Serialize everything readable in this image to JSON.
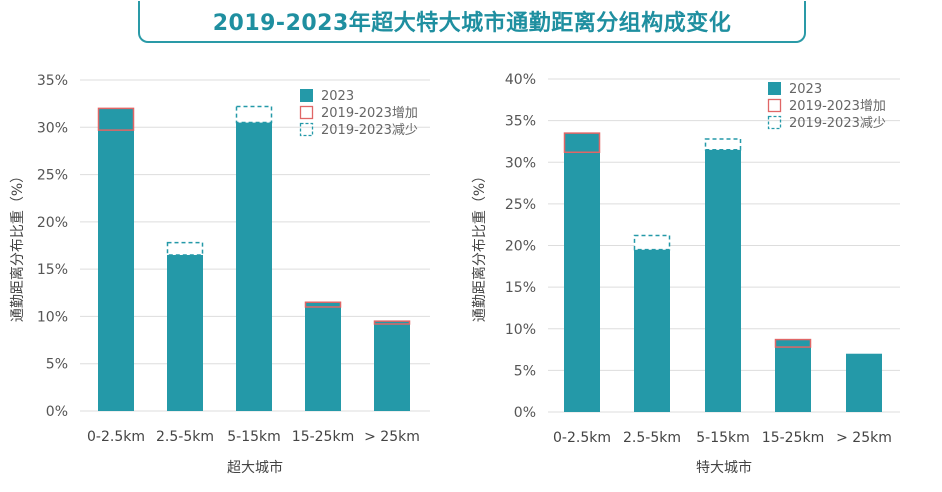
{
  "title": "2019-2023年超大特大城市通勤距离分组构成变化",
  "legend": {
    "base": "2023",
    "increase": "2019-2023增加",
    "decrease": "2019-2023减少"
  },
  "colors": {
    "bar": "#2499a8",
    "increase": "#e06666",
    "decrease": "#2499a8",
    "grid": "#dddddd"
  },
  "chart_data": [
    {
      "type": "bar",
      "id": "left",
      "xlabel": "超大城市",
      "ylabel": "通勤距离分布比重（%）",
      "ylim": [
        0,
        35
      ],
      "yticks": [
        0,
        5,
        10,
        15,
        20,
        25,
        30,
        35
      ],
      "ytick_labels": [
        "0%",
        "5%",
        "10%",
        "15%",
        "20%",
        "25%",
        "30%",
        "35%"
      ],
      "categories": [
        "0-2.5km",
        "2.5-5km",
        "5-15km",
        "15-25km",
        "> 25km"
      ],
      "series": [
        {
          "name": "2023",
          "values": [
            32.0,
            16.5,
            30.5,
            11.5,
            9.5
          ]
        },
        {
          "name": "2019-2023增加",
          "values": [
            2.3,
            0,
            0,
            0.5,
            0.3
          ]
        },
        {
          "name": "2019-2023减少",
          "values": [
            0,
            1.3,
            1.7,
            0,
            0
          ]
        }
      ],
      "grid": true,
      "legend_position": "top-right"
    },
    {
      "type": "bar",
      "id": "right",
      "xlabel": "特大城市",
      "ylabel": "通勤距离分布比重（%）",
      "ylim": [
        0,
        40
      ],
      "yticks": [
        0,
        5,
        10,
        15,
        20,
        25,
        30,
        35,
        40
      ],
      "ytick_labels": [
        "0%",
        "5%",
        "10%",
        "15%",
        "20%",
        "25%",
        "30%",
        "35%",
        "40%"
      ],
      "categories": [
        "0-2.5km",
        "2.5-5km",
        "5-15km",
        "15-25km",
        "> 25km"
      ],
      "series": [
        {
          "name": "2023",
          "values": [
            33.5,
            19.5,
            31.5,
            8.7,
            7.0
          ]
        },
        {
          "name": "2019-2023增加",
          "values": [
            2.3,
            0,
            0,
            0.9,
            0
          ]
        },
        {
          "name": "2019-2023减少",
          "values": [
            0,
            1.7,
            1.3,
            0,
            0
          ]
        }
      ],
      "grid": true,
      "legend_position": "top-right"
    }
  ]
}
